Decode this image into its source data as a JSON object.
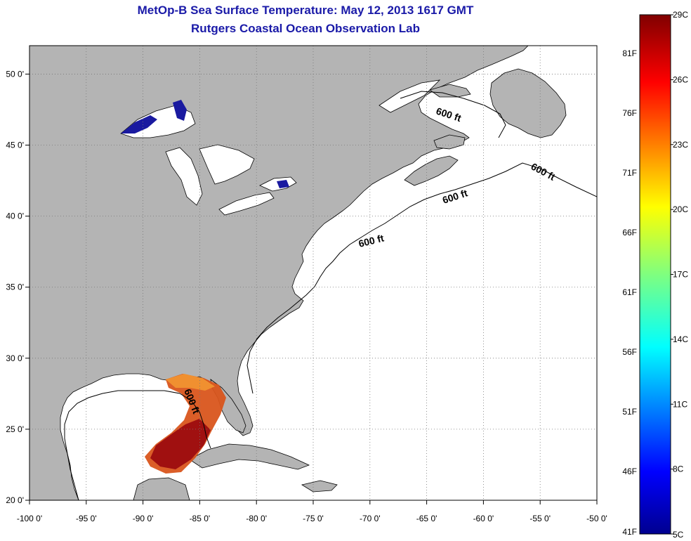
{
  "title": {
    "line1": "MetOp-B Sea Surface Temperature:  May 12, 2013 1617 GMT",
    "line2": "Rutgers Coastal Ocean Observation Lab"
  },
  "map": {
    "lon_range": [
      -100,
      -50
    ],
    "lat_range": [
      20,
      52
    ],
    "lon_ticks": [
      {
        "value": -100,
        "label": "-100 0'"
      },
      {
        "value": -95,
        "label": "-95 0'"
      },
      {
        "value": -90,
        "label": "-90 0'"
      },
      {
        "value": -85,
        "label": "-85 0'"
      },
      {
        "value": -80,
        "label": "-80 0'"
      },
      {
        "value": -75,
        "label": "-75 0'"
      },
      {
        "value": -70,
        "label": "-70 0'"
      },
      {
        "value": -65,
        "label": "-65 0'"
      },
      {
        "value": -60,
        "label": "-60 0'"
      },
      {
        "value": -55,
        "label": "-55 0'"
      },
      {
        "value": -50,
        "label": "-50 0'"
      }
    ],
    "lat_ticks": [
      {
        "value": 20,
        "label": "20 0'"
      },
      {
        "value": 25,
        "label": "25 0'"
      },
      {
        "value": 30,
        "label": "30 0'"
      },
      {
        "value": 35,
        "label": "35 0'"
      },
      {
        "value": 40,
        "label": "40 0'"
      },
      {
        "value": 45,
        "label": "45 0'"
      },
      {
        "value": 50,
        "label": "50 0'"
      }
    ],
    "contour_label": "600 ft",
    "land_color": "#b4b4b4",
    "water_color": "#ffffff"
  },
  "colorbar": {
    "celsius": [
      "29C",
      "26C",
      "23C",
      "20C",
      "17C",
      "14C",
      "11C",
      "8C",
      "5C"
    ],
    "fahrenheit": [
      "81F",
      "76F",
      "71F",
      "66F",
      "61F",
      "56F",
      "51F",
      "46F",
      "41F"
    ]
  }
}
